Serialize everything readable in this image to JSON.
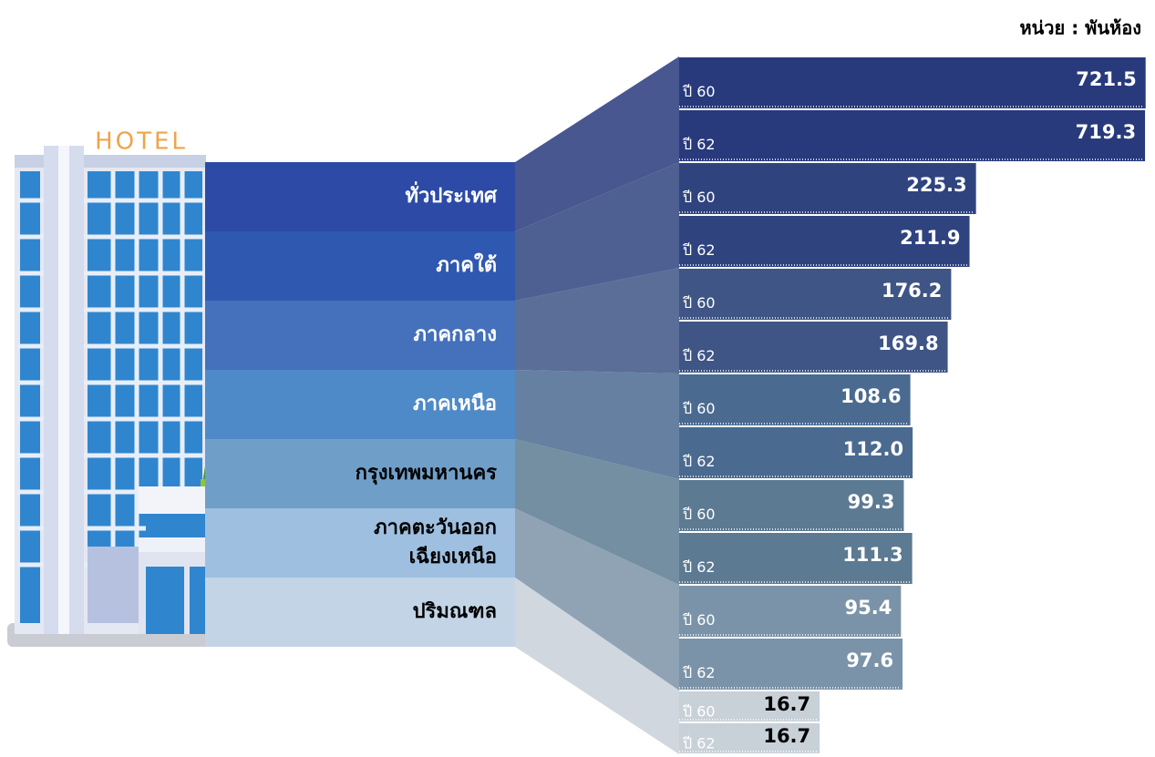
{
  "chart_data": {
    "type": "bar",
    "orientation": "horizontal",
    "unit": "หน่วย : พันห้อง",
    "annotations": [
      "HOTEL"
    ],
    "categories": [
      "ทั่วประเทศ",
      "ภาคใต้",
      "ภาคกลาง",
      "ภาคเหนือ",
      "กรุงเทพมหานคร",
      [
        "ภาคตะวันออก",
        "เฉียงเหนือ"
      ],
      "ปริมณฑล"
    ],
    "category_colors": [
      "#2c4aa6",
      "#2f58b0",
      "#4470bc",
      "#4f8ac8",
      "#6f9fc9",
      "#9ebfe0",
      "#c2d4e6"
    ],
    "bar_colors": [
      "#283a7c",
      "#2f437f",
      "#3e5585",
      "#4a6a90",
      "#5c7a92",
      "#7b93a8",
      "#c8d0d8"
    ],
    "series": [
      {
        "name": "ปี 60",
        "values": [
          721.5,
          225.3,
          176.2,
          108.6,
          99.3,
          95.4,
          16.7
        ]
      },
      {
        "name": "ปี 62",
        "values": [
          719.3,
          211.9,
          169.8,
          112.0,
          111.3,
          97.6,
          16.7
        ],
        "value_labels": [
          "719.3",
          "211.9",
          "169.8",
          "112.0",
          "111.3",
          "97.6",
          "16.7"
        ]
      }
    ]
  }
}
